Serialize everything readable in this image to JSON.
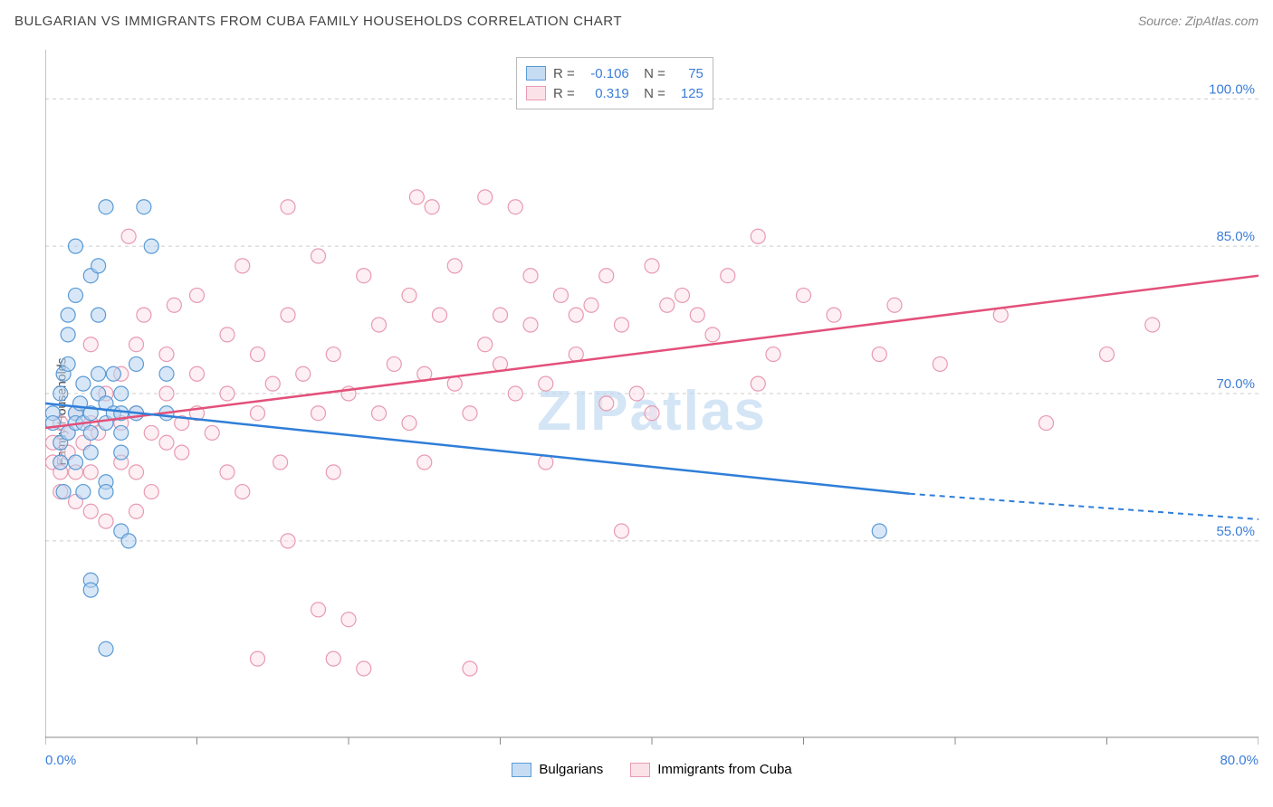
{
  "header": {
    "title": "BULGARIAN VS IMMIGRANTS FROM CUBA FAMILY HOUSEHOLDS CORRELATION CHART",
    "source": "Source: ZipAtlas.com"
  },
  "chart": {
    "type": "scatter",
    "ylabel": "Family Households",
    "watermark": "ZIPatlas",
    "background_color": "#ffffff",
    "grid_color": "#cccccc",
    "axis_color": "#888888",
    "tick_label_color": "#3b7dd8",
    "xlim": [
      0,
      80
    ],
    "ylim": [
      35,
      105
    ],
    "xticks": [
      {
        "val": 0,
        "label": "0.0%"
      },
      {
        "val": 10,
        "label": ""
      },
      {
        "val": 20,
        "label": ""
      },
      {
        "val": 30,
        "label": ""
      },
      {
        "val": 40,
        "label": ""
      },
      {
        "val": 50,
        "label": ""
      },
      {
        "val": 60,
        "label": ""
      },
      {
        "val": 70,
        "label": ""
      },
      {
        "val": 80,
        "label": "80.0%"
      }
    ],
    "yticks": [
      {
        "val": 55,
        "label": "55.0%"
      },
      {
        "val": 70,
        "label": "70.0%"
      },
      {
        "val": 85,
        "label": "85.0%"
      },
      {
        "val": 100,
        "label": "100.0%"
      }
    ],
    "marker_radius": 8,
    "series": [
      {
        "name": "Bulgarians",
        "color_fill": "#b8d4f0",
        "color_stroke": "#5b9bd5",
        "trend_color": "#2f7ed8",
        "R": "-0.106",
        "N": "75",
        "trend": {
          "x1": 0,
          "y1": 69.0,
          "x2": 57,
          "y2": 59.8,
          "x2_dash": 80,
          "y2_dash": 57.2
        },
        "points": [
          [
            0.5,
            68
          ],
          [
            0.5,
            67
          ],
          [
            1,
            70
          ],
          [
            1,
            65
          ],
          [
            1,
            63
          ],
          [
            1.2,
            60
          ],
          [
            1.2,
            72
          ],
          [
            1.5,
            76
          ],
          [
            1.5,
            73
          ],
          [
            1.5,
            78
          ],
          [
            1.5,
            66
          ],
          [
            2,
            80
          ],
          [
            2,
            68
          ],
          [
            2,
            63
          ],
          [
            2,
            67
          ],
          [
            2,
            85
          ],
          [
            2.3,
            69
          ],
          [
            2.5,
            71
          ],
          [
            2.5,
            60
          ],
          [
            2.5,
            67
          ],
          [
            3,
            68
          ],
          [
            3,
            64
          ],
          [
            3,
            66
          ],
          [
            3,
            51
          ],
          [
            3,
            50
          ],
          [
            3,
            82
          ],
          [
            3.5,
            72
          ],
          [
            3.5,
            83
          ],
          [
            3.5,
            78
          ],
          [
            3.5,
            70
          ],
          [
            4,
            67
          ],
          [
            4,
            69
          ],
          [
            4,
            61
          ],
          [
            4,
            60
          ],
          [
            4,
            89
          ],
          [
            4,
            44
          ],
          [
            4.5,
            68
          ],
          [
            4.5,
            72
          ],
          [
            5,
            68
          ],
          [
            5,
            66
          ],
          [
            5,
            70
          ],
          [
            5,
            64
          ],
          [
            5,
            56
          ],
          [
            5.5,
            55
          ],
          [
            6,
            73
          ],
          [
            6,
            68
          ],
          [
            6.5,
            89
          ],
          [
            7,
            85
          ],
          [
            8,
            68
          ],
          [
            8,
            72
          ],
          [
            55,
            56
          ]
        ]
      },
      {
        "name": "Immigrants from Cuba",
        "color_fill": "#fbe2e9",
        "color_stroke": "#e89ab1",
        "trend_color": "#e3507a",
        "R": "0.319",
        "N": "125",
        "trend": {
          "x1": 0,
          "y1": 66.5,
          "x2": 80,
          "y2": 82.0,
          "x2_dash": 80,
          "y2_dash": 82.0
        },
        "points": [
          [
            0.5,
            63
          ],
          [
            0.5,
            65
          ],
          [
            1,
            62
          ],
          [
            1,
            60
          ],
          [
            1,
            67
          ],
          [
            1.5,
            64
          ],
          [
            1.5,
            66
          ],
          [
            2,
            68
          ],
          [
            2,
            62
          ],
          [
            2,
            59
          ],
          [
            2.5,
            65
          ],
          [
            3,
            75
          ],
          [
            3,
            67
          ],
          [
            3,
            62
          ],
          [
            3,
            58
          ],
          [
            3.5,
            66
          ],
          [
            4,
            70
          ],
          [
            4,
            57
          ],
          [
            5,
            67
          ],
          [
            5,
            72
          ],
          [
            5,
            63
          ],
          [
            5.5,
            86
          ],
          [
            6,
            68
          ],
          [
            6,
            75
          ],
          [
            6,
            62
          ],
          [
            6,
            58
          ],
          [
            6.5,
            78
          ],
          [
            7,
            66
          ],
          [
            7,
            60
          ],
          [
            8,
            74
          ],
          [
            8,
            70
          ],
          [
            8,
            65
          ],
          [
            8.5,
            79
          ],
          [
            9,
            67
          ],
          [
            9,
            64
          ],
          [
            10,
            80
          ],
          [
            10,
            68
          ],
          [
            10,
            72
          ],
          [
            11,
            66
          ],
          [
            12,
            76
          ],
          [
            12,
            62
          ],
          [
            12,
            70
          ],
          [
            13,
            83
          ],
          [
            13,
            60
          ],
          [
            14,
            43
          ],
          [
            14,
            74
          ],
          [
            14,
            68
          ],
          [
            15,
            71
          ],
          [
            15.5,
            63
          ],
          [
            16,
            55
          ],
          [
            16,
            89
          ],
          [
            16,
            78
          ],
          [
            17,
            72
          ],
          [
            18,
            68
          ],
          [
            18,
            84
          ],
          [
            18,
            48
          ],
          [
            19,
            74
          ],
          [
            19,
            43
          ],
          [
            19,
            62
          ],
          [
            20,
            47
          ],
          [
            20,
            70
          ],
          [
            21,
            82
          ],
          [
            21,
            42
          ],
          [
            22,
            77
          ],
          [
            22,
            68
          ],
          [
            23,
            73
          ],
          [
            24,
            80
          ],
          [
            24,
            67
          ],
          [
            24.5,
            90
          ],
          [
            25,
            72
          ],
          [
            25,
            63
          ],
          [
            25.5,
            89
          ],
          [
            26,
            78
          ],
          [
            27,
            71
          ],
          [
            27,
            83
          ],
          [
            28,
            68
          ],
          [
            28,
            42
          ],
          [
            29,
            90
          ],
          [
            29,
            75
          ],
          [
            30,
            73
          ],
          [
            30,
            78
          ],
          [
            31,
            89
          ],
          [
            31,
            70
          ],
          [
            32,
            82
          ],
          [
            32,
            77
          ],
          [
            33,
            71
          ],
          [
            33,
            63
          ],
          [
            34,
            80
          ],
          [
            35,
            78
          ],
          [
            35,
            74
          ],
          [
            36,
            79
          ],
          [
            37,
            82
          ],
          [
            37,
            69
          ],
          [
            38,
            56
          ],
          [
            38,
            77
          ],
          [
            39,
            70
          ],
          [
            40,
            83
          ],
          [
            40,
            68
          ],
          [
            41,
            79
          ],
          [
            42,
            80
          ],
          [
            43,
            78
          ],
          [
            44,
            76
          ],
          [
            45,
            82
          ],
          [
            47,
            71
          ],
          [
            47,
            86
          ],
          [
            48,
            74
          ],
          [
            50,
            80
          ],
          [
            52,
            78
          ],
          [
            55,
            74
          ],
          [
            56,
            79
          ],
          [
            59,
            73
          ],
          [
            63,
            78
          ],
          [
            66,
            67
          ],
          [
            70,
            74
          ],
          [
            73,
            77
          ]
        ]
      }
    ],
    "legend_labels": {
      "s1": "Bulgarians",
      "s2": "Immigrants from Cuba"
    }
  }
}
